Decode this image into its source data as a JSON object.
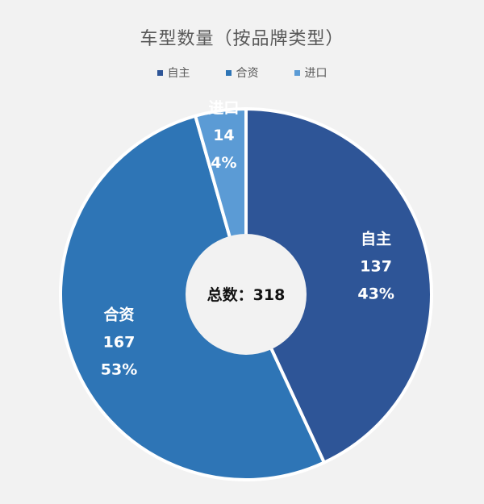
{
  "chart_data": {
    "type": "pie",
    "title": "车型数量（按品牌类型）",
    "categories": [
      "自主",
      "合资",
      "进口"
    ],
    "values": [
      137,
      167,
      14
    ],
    "percents": [
      "43%",
      "53%",
      "4%"
    ],
    "colors": [
      "#2e5597",
      "#2e75b6",
      "#5b9bd5"
    ],
    "legend_position": "top",
    "center_label": "总数：318"
  }
}
